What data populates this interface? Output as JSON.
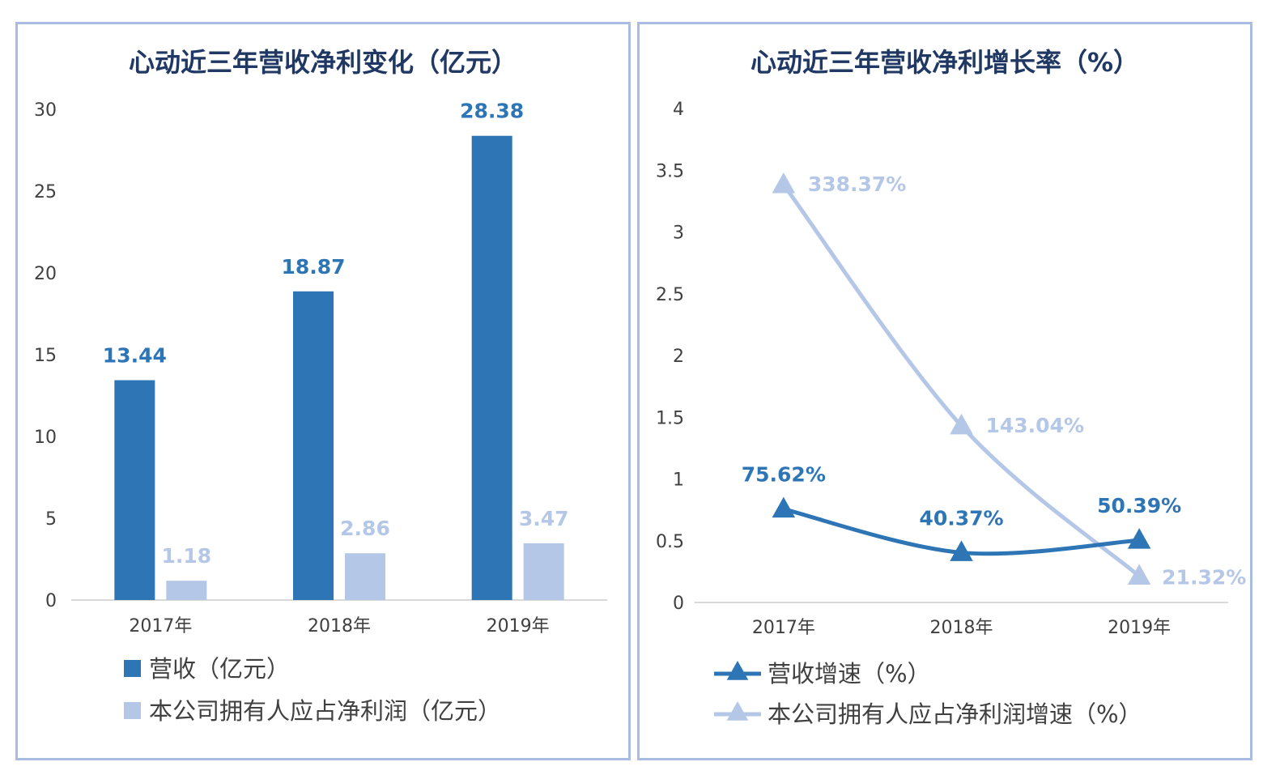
{
  "chart_data": [
    {
      "type": "bar",
      "title": "心动近三年营收净利变化（亿元）",
      "categories": [
        "2017年",
        "2018年",
        "2019年"
      ],
      "ylim": [
        0,
        30
      ],
      "yticks": [
        "0",
        "5",
        "10",
        "15",
        "20",
        "25",
        "30"
      ],
      "legend_position": "bottom-left",
      "grid": false,
      "series": [
        {
          "name": "营收（亿元）",
          "values": [
            13.44,
            18.87,
            28.38
          ],
          "labels": [
            "13.44",
            "18.87",
            "28.38"
          ],
          "color": "#2e75b6"
        },
        {
          "name": "本公司拥有人应占净利润（亿元）",
          "values": [
            1.18,
            2.86,
            3.47
          ],
          "labels": [
            "1.18",
            "2.86",
            "3.47"
          ],
          "color": "#b4c7e7"
        }
      ]
    },
    {
      "type": "line",
      "title": "心动近三年营收净利增长率（%）",
      "categories": [
        "2017年",
        "2018年",
        "2019年"
      ],
      "ylim": [
        0,
        4
      ],
      "yticks": [
        "0",
        "0.5",
        "1",
        "1.5",
        "2",
        "2.5",
        "3",
        "3.5",
        "4"
      ],
      "legend_position": "bottom-left",
      "grid": false,
      "series": [
        {
          "name": "营收增速（%）",
          "values": [
            0.7562,
            0.4037,
            0.5039
          ],
          "labels": [
            "75.62%",
            "40.37%",
            "50.39%"
          ],
          "color": "#2e75b6",
          "marker": "triangle"
        },
        {
          "name": "本公司拥有人应占净利润增速（%）",
          "values": [
            3.3837,
            1.4304,
            0.2132
          ],
          "labels": [
            "338.37%",
            "143.04%",
            "21.32%"
          ],
          "color": "#b4c7e7",
          "marker": "triangle"
        }
      ]
    }
  ]
}
